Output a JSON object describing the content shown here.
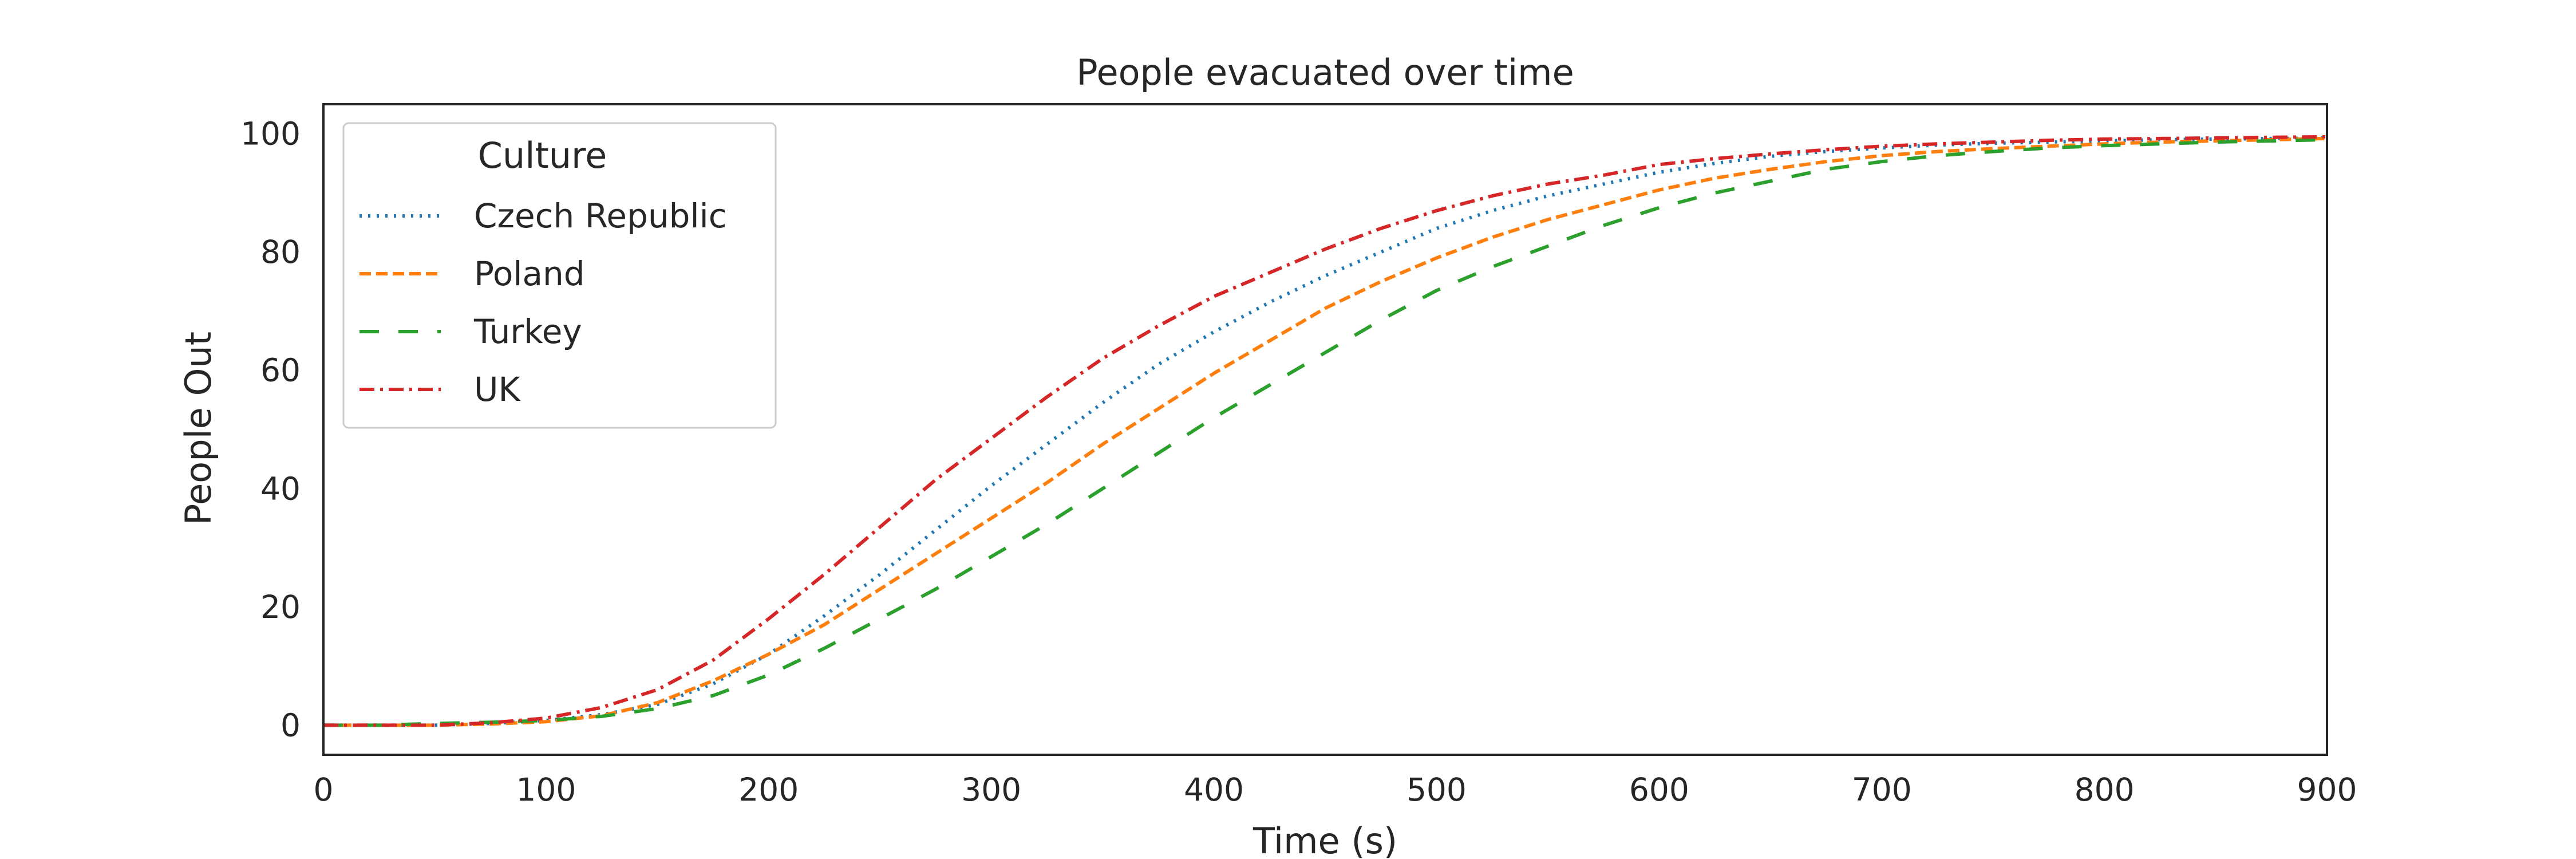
{
  "chart_data": {
    "type": "line",
    "title": "People evacuated over time",
    "xlabel": "Time (s)",
    "ylabel": "People Out",
    "xlim": [
      0,
      900
    ],
    "ylim": [
      -5,
      105
    ],
    "xticks": [
      0,
      100,
      200,
      300,
      400,
      500,
      600,
      700,
      800,
      900
    ],
    "yticks": [
      0,
      20,
      40,
      60,
      80,
      100
    ],
    "grid": false,
    "legend": {
      "title": "Culture",
      "placement": "top-left"
    },
    "x": [
      0,
      25,
      50,
      75,
      100,
      125,
      150,
      175,
      200,
      225,
      250,
      275,
      300,
      325,
      350,
      375,
      400,
      425,
      450,
      475,
      500,
      525,
      550,
      575,
      600,
      625,
      650,
      675,
      700,
      725,
      750,
      775,
      800,
      825,
      850,
      875,
      900
    ],
    "series": [
      {
        "name": "Czech Republic",
        "color": "#1f77b4",
        "dash": "dotted",
        "values": [
          0,
          0,
          0,
          0.3,
          0.8,
          1.8,
          3.5,
          7.0,
          12.0,
          18.5,
          25.5,
          33.0,
          40.5,
          47.5,
          54.5,
          61.0,
          66.5,
          71.5,
          76.0,
          80.0,
          84.0,
          87.0,
          89.5,
          91.5,
          93.5,
          95.0,
          96.2,
          97.0,
          97.6,
          98.1,
          98.4,
          98.6,
          98.8,
          99.0,
          99.1,
          99.2,
          99.3
        ]
      },
      {
        "name": "Poland",
        "color": "#ff7f0e",
        "dash": "dashed",
        "values": [
          0,
          0,
          0,
          0.2,
          0.6,
          1.6,
          3.8,
          7.5,
          12.0,
          17.0,
          23.0,
          29.0,
          35.0,
          41.0,
          47.5,
          53.5,
          59.5,
          65.0,
          70.5,
          75.0,
          79.0,
          82.5,
          85.5,
          88.0,
          90.5,
          92.5,
          94.0,
          95.3,
          96.3,
          97.0,
          97.5,
          97.9,
          98.3,
          98.6,
          98.8,
          99.0,
          99.2
        ]
      },
      {
        "name": "Turkey",
        "color": "#2ca02c",
        "dash": "longdash",
        "values": [
          0,
          0,
          0.3,
          0.5,
          0.8,
          1.5,
          2.8,
          5.0,
          8.5,
          13.0,
          18.0,
          23.0,
          28.5,
          34.0,
          40.0,
          46.0,
          52.0,
          57.5,
          63.0,
          68.5,
          73.5,
          77.5,
          81.0,
          84.5,
          87.5,
          90.0,
          92.0,
          94.0,
          95.3,
          96.3,
          97.0,
          97.6,
          98.0,
          98.3,
          98.6,
          98.8,
          99.0
        ]
      },
      {
        "name": "UK",
        "color": "#d62728",
        "dash": "dashdot",
        "values": [
          0,
          0,
          0,
          0.4,
          1.2,
          3.0,
          6.0,
          11.0,
          18.0,
          25.5,
          33.5,
          41.5,
          48.5,
          55.5,
          62.0,
          67.5,
          72.5,
          76.5,
          80.5,
          84.0,
          87.0,
          89.5,
          91.5,
          93.0,
          94.8,
          95.8,
          96.6,
          97.3,
          97.9,
          98.3,
          98.6,
          98.9,
          99.1,
          99.2,
          99.3,
          99.4,
          99.5
        ]
      }
    ]
  }
}
